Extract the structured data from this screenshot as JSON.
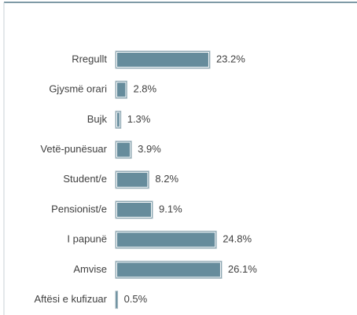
{
  "chart_data": {
    "type": "bar",
    "orientation": "horizontal",
    "categories": [
      "Rregullt",
      "Gjysmë orari",
      "Bujk",
      "Vetë-punësuar",
      "Student/e",
      "Pensionist/e",
      "I papunë",
      "Amvise",
      "Aftësi e kufizuar"
    ],
    "values": [
      23.2,
      2.8,
      1.3,
      3.9,
      8.2,
      9.1,
      24.8,
      26.1,
      0.5
    ],
    "value_labels": [
      "23.2%",
      "2.8%",
      "1.3%",
      "3.9%",
      "8.2%",
      "9.1%",
      "24.8%",
      "26.1%",
      "0.5%"
    ],
    "color": "#668c9c"
  }
}
